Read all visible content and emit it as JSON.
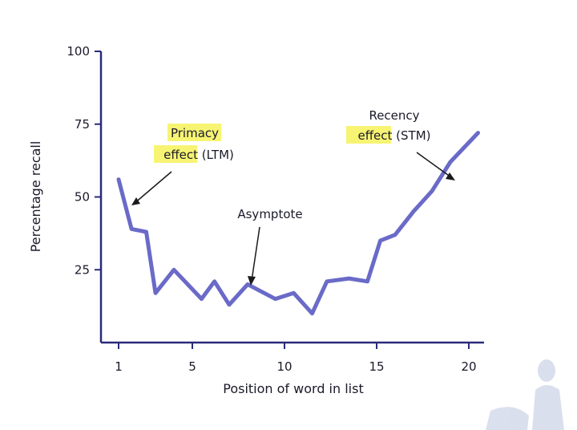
{
  "chart_data": {
    "type": "line",
    "title": "",
    "xlabel": "Position of word in list",
    "ylabel": "Percentage recall",
    "xlim": [
      0.5,
      21
    ],
    "ylim": [
      0,
      100
    ],
    "xticks": [
      1,
      5,
      10,
      15,
      20
    ],
    "yticks": [
      25,
      50,
      75,
      100
    ],
    "grid": false,
    "series": [
      {
        "color": "#6a6ac8",
        "x": [
          1,
          1.7,
          2.5,
          3,
          4,
          5.5,
          6.2,
          7,
          8,
          9.5,
          10.5,
          11.5,
          12.3,
          13.5,
          14.5,
          15.2,
          16,
          17,
          18,
          19,
          20.5
        ],
        "y": [
          56,
          39,
          38,
          17,
          25,
          15,
          21,
          13,
          20,
          15,
          17,
          10,
          21,
          22,
          21,
          35,
          37,
          45,
          52,
          62,
          72
        ]
      }
    ],
    "annotations": [
      {
        "id": "primacy",
        "lines": [
          "Primacy",
          "effect (LTM)"
        ],
        "highlight": [
          "Primacy",
          "effect"
        ]
      },
      {
        "id": "asymptote",
        "lines": [
          "Asymptote"
        ],
        "highlight": []
      },
      {
        "id": "recency",
        "lines": [
          "Recency",
          "effect (STM)"
        ],
        "highlight": [
          "effect"
        ]
      }
    ]
  }
}
